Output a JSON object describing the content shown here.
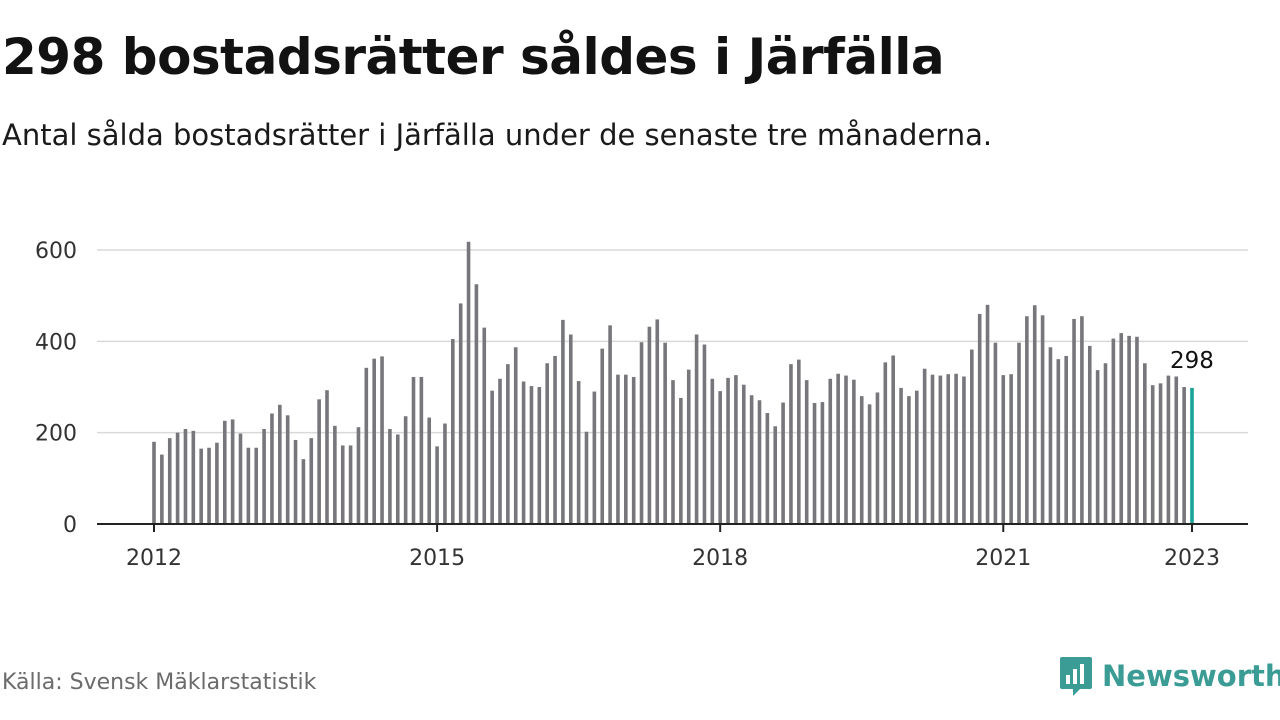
{
  "header": {
    "title": "298 bostadsrätter såldes i Järfälla",
    "subtitle": "Antal sålda bostadsrätter i Järfälla under de senaste tre månaderna."
  },
  "footer": {
    "source": "Källa: Svensk Mäklarstatistik",
    "brand": "Newsworthy"
  },
  "colors": {
    "bar": "#76767b",
    "highlight": "#1aa39b",
    "grid": "#d9d9d9",
    "axis": "#222222",
    "brand": "#3a9c94"
  },
  "chart_data": {
    "type": "bar",
    "title": "298 bostadsrätter såldes i Järfälla",
    "subtitle": "Antal sålda bostadsrätter i Järfälla under de senaste tre månaderna.",
    "xlabel": "",
    "ylabel": "",
    "ylim": [
      0,
      600
    ],
    "yticks": [
      "0",
      "200",
      "400",
      "600"
    ],
    "xticks": [
      "2012",
      "2015",
      "2018",
      "2021",
      "2023"
    ],
    "grid": true,
    "legend": "none",
    "start": "2012-01",
    "end": "2023-01",
    "frequency": "monthly",
    "highlight_label": "298",
    "values": [
      180,
      152,
      188,
      200,
      208,
      204,
      165,
      167,
      178,
      226,
      229,
      198,
      167,
      167,
      208,
      242,
      261,
      238,
      184,
      142,
      188,
      273,
      293,
      215,
      172,
      172,
      212,
      342,
      362,
      367,
      208,
      196,
      236,
      322,
      322,
      233,
      170,
      220,
      405,
      483,
      618,
      525,
      430,
      292,
      318,
      350,
      387,
      312,
      302,
      300,
      352,
      368,
      447,
      415,
      313,
      202,
      290,
      384,
      435,
      327,
      327,
      322,
      398,
      432,
      448,
      397,
      315,
      276,
      338,
      415,
      393,
      318,
      291,
      320,
      326,
      305,
      282,
      271,
      243,
      214,
      266,
      350,
      360,
      315,
      265,
      267,
      318,
      329,
      325,
      316,
      280,
      262,
      288,
      354,
      369,
      298,
      280,
      292,
      340,
      327,
      325,
      328,
      329,
      323,
      382,
      460,
      480,
      397,
      326,
      328,
      397,
      455,
      479,
      457,
      387,
      361,
      368,
      449,
      455,
      390,
      337,
      352,
      406,
      418,
      412,
      410,
      352,
      304,
      308,
      325,
      323,
      300,
      298
    ]
  }
}
